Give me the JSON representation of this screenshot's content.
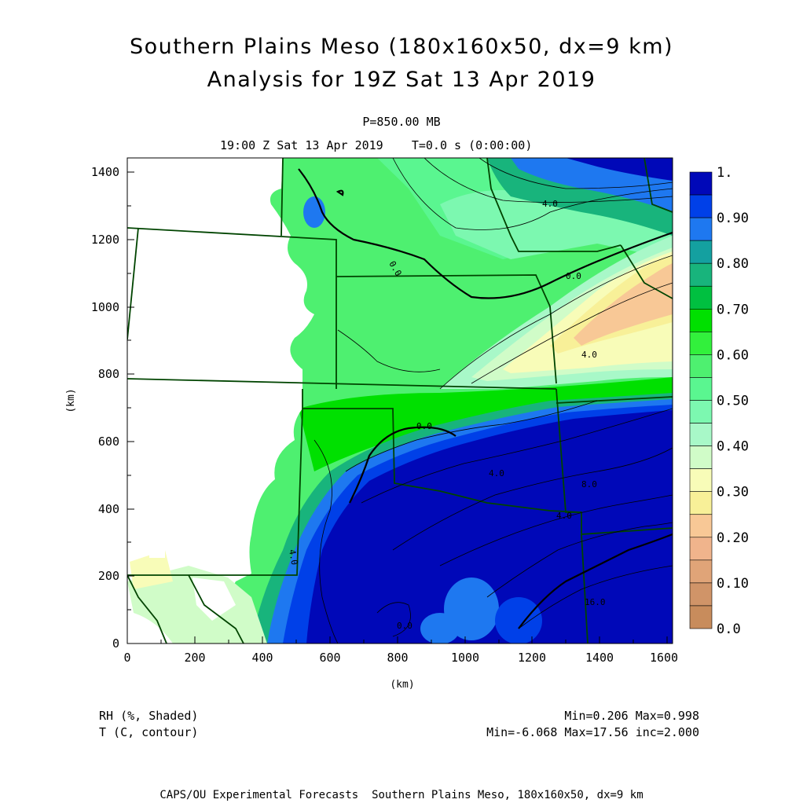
{
  "header": {
    "title_line1": "Southern Plains Meso (180x160x50, dx=9 km)",
    "title_line2": "Analysis for 19Z Sat 13 Apr 2019",
    "level": "P=850.00 MB",
    "time": "19:00 Z Sat 13 Apr 2019    T=0.0 s (0:00:00)"
  },
  "axes": {
    "x_label": "(km)",
    "y_label": "(km)",
    "x_ticks": [
      "0",
      "200",
      "400",
      "600",
      "800",
      "1000",
      "1200",
      "1400",
      "1600"
    ],
    "y_ticks": [
      "0",
      "200",
      "400",
      "600",
      "800",
      "1000",
      "1200",
      "1400"
    ],
    "x_range_km": [
      0,
      1620
    ],
    "y_range_km": [
      0,
      1440
    ]
  },
  "colorbar": {
    "labels": [
      "1.",
      "0.90",
      "0.80",
      "0.70",
      "0.60",
      "0.50",
      "0.40",
      "0.30",
      "0.20",
      "0.10",
      "0.0"
    ],
    "colors": [
      "#0008b8",
      "#0040e8",
      "#1e78f0",
      "#14a0a0",
      "#18b47c",
      "#00c040",
      "#00e000",
      "#32f03c",
      "#4ef070",
      "#5af690",
      "#7cf8b0",
      "#a8f8c8",
      "#d0fcc8",
      "#f8fcb8",
      "#f8f098",
      "#f8c896",
      "#f0b48c",
      "#e0a478",
      "#d09468",
      "#c88c5c"
    ]
  },
  "contour_labels": [
    "4.0",
    "0.0",
    "0.0",
    "4.0",
    "0.0",
    "4.0",
    "8.0",
    "4.0",
    "12.0",
    "16.0",
    "4.0",
    "0.0"
  ],
  "legend": {
    "shaded": "RH (%, Shaded)",
    "contour": "T (C, contour)",
    "shaded_minmax": "Min=0.206 Max=0.998",
    "contour_minmax": "Min=-6.068 Max=17.56 inc=2.000"
  },
  "footer": "CAPS/OU Experimental Forecasts  Southern Plains Meso, 180x160x50, dx=9 km"
}
